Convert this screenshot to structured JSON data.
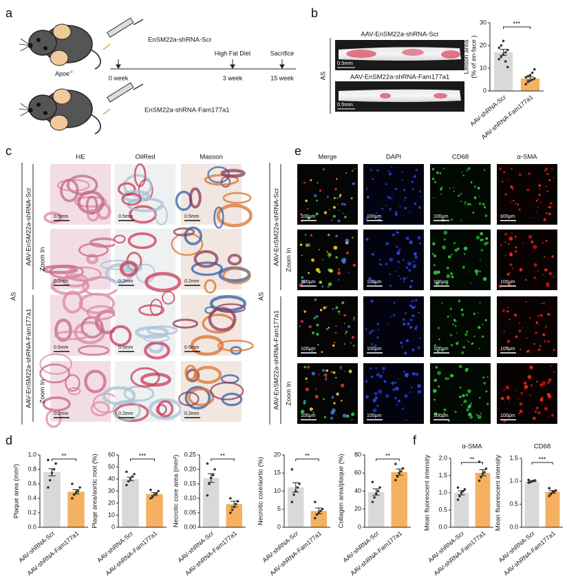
{
  "panel_a": {
    "letter": "a",
    "genotype": "Apoe",
    "genotype_sup": "-/-",
    "group1": "EnSM22a-shRNA-Scr",
    "group2": "EnSM22a-shRNA-Fam177a1",
    "timeline": [
      "0 week",
      "3 week",
      "15 week"
    ],
    "events": [
      "High Fat Diet",
      "Sacrifice"
    ]
  },
  "panel_b": {
    "letter": "b",
    "side_label": "AS",
    "images": [
      {
        "title": "AAV-EnSM22a-shRNA-Scr",
        "scale": "0.5mm"
      },
      {
        "title": "AAV-EnSM22a-shRNA-Fam177a1",
        "scale": "0.5mm"
      }
    ]
  },
  "panel_c": {
    "letter": "c",
    "columns": [
      "HE",
      "OilRed",
      "Masson"
    ],
    "side_label": "AS",
    "groups": [
      "AAV-EnSM22a-shRNA-Scr",
      "AAV-EnSM22a-shRNA-Fam177a1"
    ],
    "zoom": "Zoom In",
    "scales": [
      "0.5mm",
      "0.2mm",
      "0.5mm",
      "0.2mm"
    ]
  },
  "panel_e": {
    "letter": "e",
    "columns": [
      "Merge",
      "DAPI",
      "CD68",
      "α-SMA"
    ],
    "side_label": "AS",
    "groups": [
      "AAV-EnSM22a-shRNA-Scr",
      "AAV-EnSM22a-shRNA-Fam177a1"
    ],
    "zoom": "Zoom In",
    "scale": "100μm"
  },
  "panel_d": {
    "letter": "d"
  },
  "panel_f": {
    "letter": "f"
  },
  "chart_data": [
    {
      "type": "bar",
      "ylabel": [
        "Leison area",
        "(% of en-face )"
      ],
      "categories": [
        "AAV-shRNA-Scr",
        "AAV-shRNA-Fam177a1"
      ],
      "values": [
        17,
        5.5
      ],
      "errors": [
        1.3,
        0.7
      ],
      "colors": [
        "#d9d9d9",
        "#f5b161"
      ],
      "point_color": "#333333",
      "points": [
        [
          14,
          15,
          16,
          17,
          18,
          19,
          20,
          22,
          13,
          10.5
        ],
        [
          3,
          4,
          4.5,
          5,
          5.5,
          6,
          6.5,
          7,
          8,
          9.5
        ]
      ],
      "significance": "***",
      "ylim": [
        0,
        30
      ],
      "yticks": [
        0,
        10,
        20,
        30
      ]
    },
    {
      "type": "bar",
      "ylabel": "Plaque area (mm²)",
      "categories": [
        "AAV-shRNA-Scr",
        "AAV-shRNA-Fam177a1"
      ],
      "values": [
        0.76,
        0.49
      ],
      "errors": [
        0.05,
        0.03
      ],
      "colors": [
        "#d9d9d9",
        "#f5b161"
      ],
      "point_color": "#333333",
      "points": [
        [
          0.55,
          0.65,
          0.75,
          0.8,
          0.88,
          0.93
        ],
        [
          0.4,
          0.45,
          0.48,
          0.5,
          0.55,
          0.6
        ]
      ],
      "significance": "**",
      "ylim": [
        0,
        1.0
      ],
      "yticks": [
        {
          "value": 0,
          "label": "0.0"
        },
        0.2,
        0.4,
        0.6,
        0.8,
        {
          "value": 1,
          "label": "1.0"
        }
      ]
    },
    {
      "type": "bar",
      "ylabel": "Plaqe area/aortic root (%)",
      "categories": [
        "AAV-shRNA-Scr",
        "AAV-shRNA-Fam177a1"
      ],
      "values": [
        40,
        27.5
      ],
      "errors": [
        1.5,
        1.2
      ],
      "colors": [
        "#d9d9d9",
        "#f5b161"
      ],
      "point_color": "#333333",
      "points": [
        [
          35,
          38,
          40,
          42,
          44,
          46
        ],
        [
          24,
          25,
          27,
          28,
          30,
          31
        ]
      ],
      "significance": "***",
      "ylim": [
        0,
        60
      ],
      "yticks": [
        0,
        10,
        20,
        30,
        40,
        50,
        60
      ]
    },
    {
      "type": "bar",
      "ylabel": "Necrotic core area (mm²)",
      "categories": [
        "AAV-shRNA-Scr",
        "AAV-shRNA-Fam177a1"
      ],
      "values": [
        0.17,
        0.08
      ],
      "errors": [
        0.015,
        0.01
      ],
      "colors": [
        "#d9d9d9",
        "#f5b161"
      ],
      "point_color": "#333333",
      "points": [
        [
          0.11,
          0.15,
          0.17,
          0.18,
          0.2,
          0.22
        ],
        [
          0.05,
          0.06,
          0.07,
          0.08,
          0.09,
          0.1
        ]
      ],
      "significance": "**",
      "ylim": [
        0,
        0.25
      ],
      "yticks": [
        {
          "value": 0,
          "label": "0.00"
        },
        0.05,
        {
          "value": 0.1,
          "label": "0.10"
        },
        0.15,
        {
          "value": 0.2,
          "label": "0.20"
        },
        0.25
      ]
    },
    {
      "type": "bar",
      "ylabel": "Necrotic  core/aortic (%)",
      "categories": [
        "AAV-shRNA-Scr",
        "AAV-shRNA-Fam177a1"
      ],
      "values": [
        11,
        4.5
      ],
      "errors": [
        1.3,
        0.8
      ],
      "colors": [
        "#d9d9d9",
        "#f5b161"
      ],
      "point_color": "#333333",
      "points": [
        [
          7,
          9,
          10,
          11,
          12,
          16
        ],
        [
          2.5,
          3.5,
          4,
          4.5,
          5,
          7
        ]
      ],
      "significance": "**",
      "ylim": [
        0,
        20
      ],
      "yticks": [
        0,
        5,
        10,
        15,
        20
      ]
    },
    {
      "type": "bar",
      "ylabel": "Collagen area/plaque (%)",
      "categories": [
        "AAV-shRNA-Scr",
        "AAV-shRNA-Fam177a1"
      ],
      "values": [
        39,
        61
      ],
      "errors": [
        3.5,
        3.5
      ],
      "colors": [
        "#d9d9d9",
        "#f5b161"
      ],
      "point_color": "#333333",
      "points": [
        [
          28,
          33,
          37,
          40,
          44,
          50
        ],
        [
          52,
          56,
          60,
          62,
          65,
          70
        ]
      ],
      "significance": "**",
      "ylim": [
        0,
        80
      ],
      "yticks": [
        0,
        20,
        40,
        60,
        80
      ]
    },
    {
      "type": "bar",
      "title": "α-SMA",
      "ylabel": "Mean fluorescent intensity",
      "categories": [
        "AAV-shRNA-Scr",
        "AAV-shRNA-Fam177a1"
      ],
      "values": [
        1.0,
        1.58
      ],
      "errors": [
        0.06,
        0.09
      ],
      "colors": [
        "#d9d9d9",
        "#f5b161"
      ],
      "point_color": "#333333",
      "points": [
        [
          0.8,
          0.9,
          1.0,
          1.05,
          1.1,
          1.15
        ],
        [
          1.35,
          1.45,
          1.55,
          1.6,
          1.7,
          1.9
        ]
      ],
      "significance": "**",
      "ylim": [
        0,
        2.0
      ],
      "yticks": [
        {
          "value": 0,
          "label": "0.0"
        },
        0.5,
        {
          "value": 1,
          "label": "1.0"
        },
        1.5,
        {
          "value": 2,
          "label": "2.0"
        }
      ]
    },
    {
      "type": "bar",
      "title": "CD68",
      "ylabel": "Mean fluorescent intensity",
      "categories": [
        "AAV-shRNA-Scr",
        "AAV-shRNA-Fam177a1"
      ],
      "values": [
        1.0,
        0.77
      ],
      "errors": [
        0.01,
        0.03
      ],
      "colors": [
        "#d9d9d9",
        "#f5b161"
      ],
      "point_color": "#333333",
      "points": [
        [
          0.97,
          0.98,
          1.0,
          1.01,
          1.02,
          1.03
        ],
        [
          0.68,
          0.72,
          0.76,
          0.78,
          0.8,
          0.85
        ]
      ],
      "significance": "***",
      "ylim": [
        0,
        1.5
      ],
      "yticks": [
        {
          "value": 0,
          "label": "0.0"
        },
        0.5,
        {
          "value": 1,
          "label": "1.0"
        },
        1.5
      ]
    }
  ]
}
